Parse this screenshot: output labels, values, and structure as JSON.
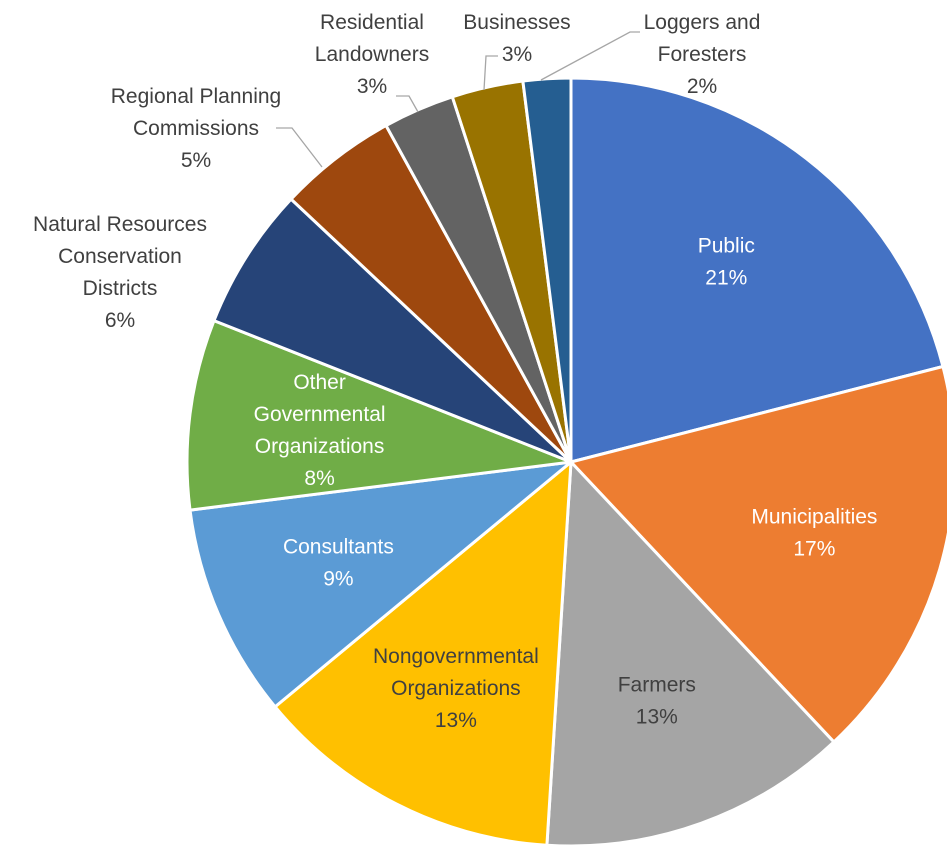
{
  "chart_data": {
    "type": "pie",
    "title": "",
    "start_angle_deg": 0,
    "direction": "clockwise",
    "slices": [
      {
        "label": [
          "Public"
        ],
        "value": 21,
        "value_text": "21%",
        "color": "#4472C4",
        "label_color": "#FFFFFF",
        "label_inside": true
      },
      {
        "label": [
          "Municipalities"
        ],
        "value": 17,
        "value_text": "17%",
        "color": "#ED7D31",
        "label_color": "#FFFFFF",
        "label_inside": true
      },
      {
        "label": [
          "Farmers"
        ],
        "value": 13,
        "value_text": "13%",
        "color": "#A5A5A5",
        "label_color": "#404040",
        "label_inside": true
      },
      {
        "label": [
          "Nongovernmental",
          "Organizations"
        ],
        "value": 13,
        "value_text": "13%",
        "color": "#FFC000",
        "label_color": "#404040",
        "label_inside": true
      },
      {
        "label": [
          "Consultants"
        ],
        "value": 9,
        "value_text": "9%",
        "color": "#5B9BD5",
        "label_color": "#FFFFFF",
        "label_inside": true
      },
      {
        "label": [
          "Other",
          "Governmental",
          "Organizations"
        ],
        "value": 8,
        "value_text": "8%",
        "color": "#70AD47",
        "label_color": "#FFFFFF",
        "label_inside": true
      },
      {
        "label": [
          "Natural Resources",
          "Conservation",
          "Districts"
        ],
        "value": 6,
        "value_text": "6%",
        "color": "#264478",
        "label_color": "#404040",
        "label_inside": false
      },
      {
        "label": [
          "Regional Planning",
          "Commissions"
        ],
        "value": 5,
        "value_text": "5%",
        "color": "#9E480E",
        "label_color": "#404040",
        "label_inside": false
      },
      {
        "label": [
          "Residential",
          "Landowners"
        ],
        "value": 3,
        "value_text": "3%",
        "color": "#636363",
        "label_color": "#404040",
        "label_inside": false
      },
      {
        "label": [
          "Businesses"
        ],
        "value": 3,
        "value_text": "3%",
        "color": "#997300",
        "label_color": "#404040",
        "label_inside": false
      },
      {
        "label": [
          "Loggers and",
          "Foresters"
        ],
        "value": 2,
        "value_text": "2%",
        "color": "#255E91",
        "label_color": "#404040",
        "label_inside": false
      }
    ]
  }
}
